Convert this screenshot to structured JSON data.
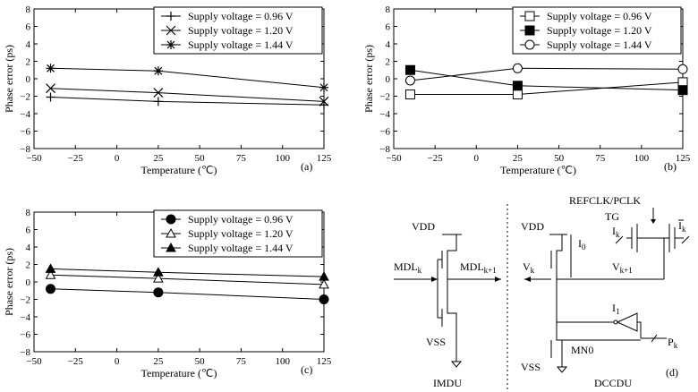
{
  "chart_data": [
    {
      "type": "line",
      "panel_label": "(a)",
      "xlabel": "Temperature (℃)",
      "ylabel": "Phase error (ps)",
      "xlim": [
        -50,
        125
      ],
      "ylim": [
        -8,
        8
      ],
      "xticks": [
        "−50",
        "−25",
        "0",
        "25",
        "50",
        "75",
        "100",
        "125"
      ],
      "yticks": [
        "8",
        "6",
        "4",
        "2",
        "0",
        "−2",
        "−4",
        "−6",
        "−8"
      ],
      "x": [
        -40,
        25,
        125
      ],
      "legend_position": "top-right",
      "series": [
        {
          "name": "Supply voltage = 0.96 V",
          "marker": "plus",
          "values": [
            -2.1,
            -2.6,
            -3.0
          ]
        },
        {
          "name": "Supply voltage = 1.20 V",
          "marker": "cross",
          "values": [
            -1.1,
            -1.6,
            -2.6
          ]
        },
        {
          "name": "Supply voltage = 1.44 V",
          "marker": "star",
          "values": [
            1.2,
            0.9,
            -1.0
          ]
        }
      ]
    },
    {
      "type": "line",
      "panel_label": "(b)",
      "xlabel": "Temperature (℃)",
      "ylabel": "Phase error (ps)",
      "xlim": [
        -50,
        125
      ],
      "ylim": [
        -8,
        8
      ],
      "xticks": [
        "−50",
        "−25",
        "0",
        "25",
        "50",
        "75",
        "100",
        "125"
      ],
      "yticks": [
        "8",
        "6",
        "4",
        "2",
        "0",
        "−2",
        "−4",
        "−6",
        "−8"
      ],
      "x": [
        -40,
        25,
        125
      ],
      "legend_position": "top-right",
      "series": [
        {
          "name": "Supply voltage = 0.96 V",
          "marker": "square-open",
          "values": [
            -1.8,
            -1.8,
            -0.4
          ]
        },
        {
          "name": "Supply voltage = 1.20 V",
          "marker": "square-filled",
          "values": [
            1.0,
            -0.8,
            -1.3
          ]
        },
        {
          "name": "Supply voltage = 1.44 V",
          "marker": "circle-open",
          "values": [
            -0.2,
            1.2,
            1.1
          ]
        }
      ]
    },
    {
      "type": "line",
      "panel_label": "(c)",
      "xlabel": "Temperature (℃)",
      "ylabel": "Phase error (ps)",
      "xlim": [
        -50,
        125
      ],
      "ylim": [
        -8,
        8
      ],
      "xticks": [
        "−50",
        "−25",
        "0",
        "25",
        "50",
        "75",
        "100",
        "125"
      ],
      "yticks": [
        "8",
        "6",
        "4",
        "2",
        "0",
        "−2",
        "−4",
        "−6",
        "−8"
      ],
      "x": [
        -40,
        25,
        125
      ],
      "legend_position": "top-right",
      "series": [
        {
          "name": "Supply voltage = 0.96 V",
          "marker": "circle-filled",
          "values": [
            -0.8,
            -1.2,
            -2.0
          ]
        },
        {
          "name": "Supply voltage = 1.20 V",
          "marker": "triangle-open",
          "values": [
            0.8,
            0.4,
            -0.3
          ]
        },
        {
          "name": "Supply voltage = 1.44 V",
          "marker": "triangle-filled",
          "values": [
            1.5,
            1.1,
            0.6
          ]
        }
      ]
    }
  ],
  "circuit": {
    "panel_label": "(d)",
    "imdu": {
      "title": "IMDU",
      "vdd": "VDD",
      "vss": "VSS",
      "in": "MDL",
      "in_sub": "k",
      "out": "MDL",
      "out_sub": "k+1"
    },
    "dccdu": {
      "title": "DCCDU",
      "vdd": "VDD",
      "vss": "VSS",
      "refclk": "REFCLK/PCLK",
      "tg": "TG",
      "ik": "I",
      "ik_sub": "k",
      "ikbar": "I",
      "ikbar_sub": "k",
      "i0": "I",
      "i0_sub": "0",
      "i1": "I",
      "i1_sub": "1",
      "vk": "V",
      "vk_sub": "k",
      "vk1": "V",
      "vk1_sub": "k+1",
      "pk": "P",
      "pk_sub": "k",
      "mn0": "MN0"
    }
  }
}
